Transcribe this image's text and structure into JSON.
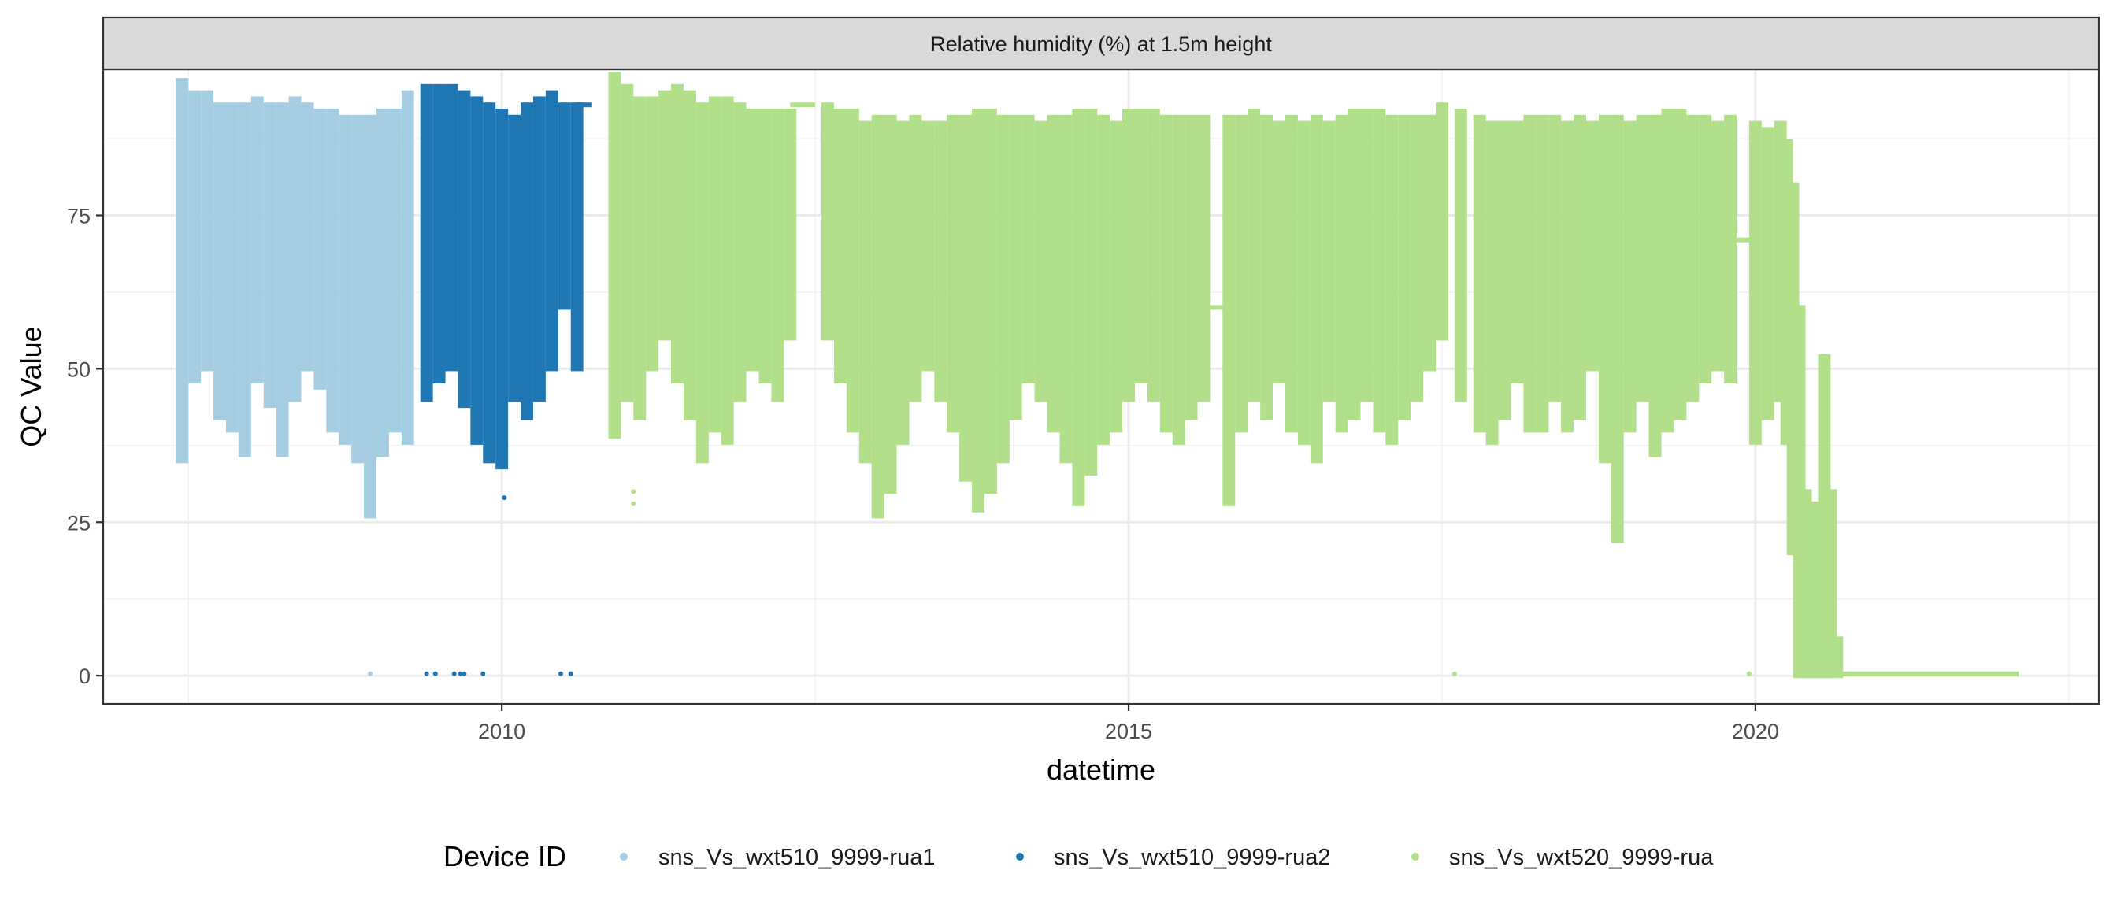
{
  "chart_data": {
    "type": "scatter",
    "title": "Relative humidity (%) at 1.5m height",
    "xlabel": "datetime",
    "ylabel": "QC Value",
    "xlim": [
      2006.82,
      2022.74
    ],
    "ylim": [
      -4.6,
      98.8
    ],
    "x_ticks": [
      2010,
      2015,
      2020
    ],
    "x_minor": [
      2007.5,
      2012.5,
      2017.5,
      2022.5
    ],
    "y_ticks": [
      0,
      25,
      50,
      75
    ],
    "y_minor": [
      12.5,
      37.5,
      62.5,
      87.5
    ],
    "grid": true,
    "legend": {
      "title": "Device ID",
      "position": "bottom"
    },
    "bin_width_years": 0.1,
    "series": [
      {
        "name": "sns_Vs_wxt510_9999-rua1",
        "color": "#A6CEE3",
        "bins_x_min_max": [
          [
            2007.45,
            35,
            97
          ],
          [
            2007.55,
            48,
            95
          ],
          [
            2007.65,
            50,
            95
          ],
          [
            2007.75,
            42,
            93
          ],
          [
            2007.85,
            40,
            93
          ],
          [
            2007.95,
            36,
            93
          ],
          [
            2008.05,
            48,
            94
          ],
          [
            2008.15,
            44,
            93
          ],
          [
            2008.25,
            36,
            93
          ],
          [
            2008.35,
            45,
            94
          ],
          [
            2008.45,
            50,
            93
          ],
          [
            2008.55,
            47,
            92
          ],
          [
            2008.65,
            40,
            92
          ],
          [
            2008.75,
            38,
            91
          ],
          [
            2008.85,
            35,
            91
          ],
          [
            2008.95,
            26,
            91
          ],
          [
            2009.05,
            36,
            92
          ],
          [
            2009.15,
            40,
            92
          ],
          [
            2009.25,
            38,
            95
          ]
        ],
        "flat_segments_x0_x1_y": [],
        "points_x_y": [
          [
            2008.95,
            0.3
          ],
          [
            2007.42,
            35
          ]
        ]
      },
      {
        "name": "sns_Vs_wxt510_9999-rua2",
        "color": "#1F78B4",
        "bins_x_min_max": [
          [
            2009.4,
            45,
            96
          ],
          [
            2009.5,
            48,
            96
          ],
          [
            2009.6,
            50,
            96
          ],
          [
            2009.7,
            44,
            95
          ],
          [
            2009.8,
            38,
            94
          ],
          [
            2009.9,
            35,
            93
          ],
          [
            2010.0,
            34,
            92
          ],
          [
            2010.1,
            45,
            91
          ],
          [
            2010.2,
            42,
            93
          ],
          [
            2010.3,
            45,
            94
          ],
          [
            2010.4,
            50,
            95
          ],
          [
            2010.5,
            60,
            93
          ],
          [
            2010.6,
            50,
            93
          ]
        ],
        "flat_segments_x0_x1_y": [
          [
            2010.6,
            2010.72,
            93
          ]
        ],
        "points_x_y": [
          [
            2009.4,
            0.3
          ],
          [
            2009.47,
            0.3
          ],
          [
            2009.62,
            0.3
          ],
          [
            2009.67,
            0.3
          ],
          [
            2009.7,
            0.3
          ],
          [
            2009.85,
            0.3
          ],
          [
            2010.47,
            0.3
          ],
          [
            2010.55,
            0.3
          ],
          [
            2010.02,
            29
          ]
        ]
      },
      {
        "name": "sns_Vs_wxt520_9999-rua",
        "color": "#B2DF8A",
        "bins_x_min_max": [
          [
            2010.9,
            39,
            98
          ],
          [
            2011.0,
            45,
            96
          ],
          [
            2011.1,
            42,
            94
          ],
          [
            2011.2,
            50,
            94
          ],
          [
            2011.3,
            55,
            95
          ],
          [
            2011.4,
            48,
            96
          ],
          [
            2011.5,
            42,
            95
          ],
          [
            2011.6,
            35,
            93
          ],
          [
            2011.7,
            40,
            94
          ],
          [
            2011.8,
            38,
            94
          ],
          [
            2011.9,
            45,
            93
          ],
          [
            2012.0,
            50,
            92
          ],
          [
            2012.1,
            48,
            92
          ],
          [
            2012.2,
            45,
            92
          ],
          [
            2012.3,
            55,
            92
          ],
          [
            2012.6,
            55,
            93
          ],
          [
            2012.7,
            48,
            92
          ],
          [
            2012.8,
            40,
            92
          ],
          [
            2012.9,
            35,
            90
          ],
          [
            2013.0,
            26,
            91
          ],
          [
            2013.1,
            30,
            91
          ],
          [
            2013.2,
            38,
            90
          ],
          [
            2013.3,
            45,
            91
          ],
          [
            2013.4,
            50,
            90
          ],
          [
            2013.5,
            45,
            90
          ],
          [
            2013.6,
            40,
            91
          ],
          [
            2013.7,
            32,
            91
          ],
          [
            2013.8,
            27,
            92
          ],
          [
            2013.9,
            30,
            92
          ],
          [
            2014.0,
            35,
            91
          ],
          [
            2014.1,
            42,
            91
          ],
          [
            2014.2,
            48,
            91
          ],
          [
            2014.3,
            45,
            90
          ],
          [
            2014.4,
            40,
            91
          ],
          [
            2014.5,
            35,
            91
          ],
          [
            2014.6,
            28,
            92
          ],
          [
            2014.7,
            33,
            92
          ],
          [
            2014.8,
            38,
            91
          ],
          [
            2014.9,
            40,
            90
          ],
          [
            2015.0,
            45,
            92
          ],
          [
            2015.1,
            48,
            92
          ],
          [
            2015.2,
            45,
            92
          ],
          [
            2015.3,
            40,
            91
          ],
          [
            2015.4,
            38,
            91
          ],
          [
            2015.5,
            42,
            91
          ],
          [
            2015.6,
            45,
            91
          ],
          [
            2015.8,
            28,
            91
          ],
          [
            2015.9,
            40,
            91
          ],
          [
            2016.0,
            45,
            92
          ],
          [
            2016.1,
            42,
            91
          ],
          [
            2016.2,
            48,
            90
          ],
          [
            2016.3,
            40,
            91
          ],
          [
            2016.4,
            38,
            90
          ],
          [
            2016.5,
            35,
            91
          ],
          [
            2016.6,
            45,
            90
          ],
          [
            2016.7,
            40,
            91
          ],
          [
            2016.8,
            42,
            92
          ],
          [
            2016.9,
            45,
            92
          ],
          [
            2017.0,
            40,
            92
          ],
          [
            2017.1,
            38,
            91
          ],
          [
            2017.2,
            42,
            91
          ],
          [
            2017.3,
            45,
            91
          ],
          [
            2017.4,
            50,
            91
          ],
          [
            2017.5,
            55,
            93
          ],
          [
            2017.65,
            45,
            92
          ],
          [
            2017.8,
            40,
            91
          ],
          [
            2017.9,
            38,
            90
          ],
          [
            2018.0,
            42,
            90
          ],
          [
            2018.1,
            48,
            90
          ],
          [
            2018.2,
            40,
            91
          ],
          [
            2018.3,
            40,
            91
          ],
          [
            2018.4,
            45,
            91
          ],
          [
            2018.5,
            40,
            90
          ],
          [
            2018.6,
            42,
            91
          ],
          [
            2018.7,
            50,
            90
          ],
          [
            2018.8,
            35,
            91
          ],
          [
            2018.9,
            22,
            91
          ],
          [
            2019.0,
            40,
            90
          ],
          [
            2019.1,
            45,
            91
          ],
          [
            2019.2,
            36,
            91
          ],
          [
            2019.3,
            40,
            92
          ],
          [
            2019.4,
            42,
            92
          ],
          [
            2019.5,
            45,
            91
          ],
          [
            2019.6,
            48,
            91
          ],
          [
            2019.7,
            50,
            90
          ],
          [
            2019.8,
            48,
            91
          ],
          [
            2020.0,
            38,
            90
          ],
          [
            2020.1,
            42,
            89
          ],
          [
            2020.2,
            45,
            90
          ],
          [
            2020.25,
            38,
            87
          ],
          [
            2020.3,
            20,
            80
          ],
          [
            2020.35,
            0,
            60
          ],
          [
            2020.4,
            0,
            30
          ],
          [
            2020.45,
            0,
            22
          ],
          [
            2020.5,
            0,
            28
          ],
          [
            2020.55,
            0,
            52
          ],
          [
            2020.6,
            0,
            30
          ],
          [
            2020.65,
            0,
            6
          ]
        ],
        "flat_segments_x0_x1_y": [
          [
            2012.3,
            2012.5,
            93
          ],
          [
            2015.6,
            2015.75,
            60
          ],
          [
            2019.8,
            2019.95,
            71
          ],
          [
            2020.65,
            2022.1,
            0.3
          ]
        ],
        "points_x_y": [
          [
            2011.05,
            28
          ],
          [
            2011.05,
            30
          ],
          [
            2017.6,
            0.3
          ],
          [
            2019.95,
            0.3
          ]
        ]
      }
    ]
  }
}
